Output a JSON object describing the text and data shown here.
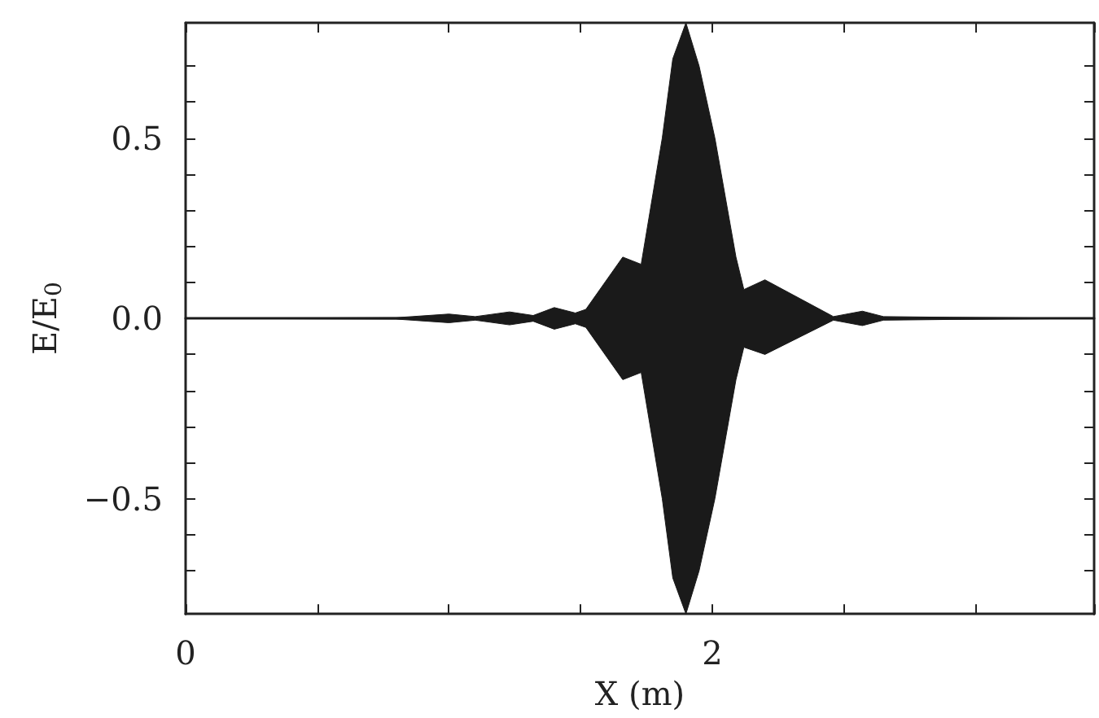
{
  "chart_data": {
    "type": "line",
    "xlabel": "X (m)",
    "ylabel": "E/E$_{0}$",
    "xlim": [
      0,
      3.45
    ],
    "ylim": [
      -0.82,
      0.82
    ],
    "xticks": [
      0,
      {
        "value": 0.5,
        "label": null
      },
      {
        "value": 1,
        "label": null
      },
      {
        "value": 1.5,
        "label": null
      },
      2,
      {
        "value": 2.5,
        "label": null
      },
      {
        "value": 3,
        "label": null
      }
    ],
    "yticks": [
      {
        "value": -0.7,
        "label": null
      },
      {
        "value": -0.6,
        "label": null
      },
      {
        "value": -0.5,
        "label": "−0.5"
      },
      {
        "value": -0.4,
        "label": null
      },
      {
        "value": -0.3,
        "label": null
      },
      {
        "value": -0.2,
        "label": null
      },
      {
        "value": -0.1,
        "label": null
      },
      {
        "value": 0,
        "label": "0.0"
      },
      {
        "value": 0.1,
        "label": null
      },
      {
        "value": 0.2,
        "label": null
      },
      {
        "value": 0.3,
        "label": null
      },
      {
        "value": 0.4,
        "label": null
      },
      {
        "value": 0.5,
        "label": "0.5"
      },
      {
        "value": 0.6,
        "label": null
      },
      {
        "value": 0.7,
        "label": null
      }
    ],
    "grid": false,
    "marker": "none",
    "line_style": "solid",
    "x": [
      0,
      0.8,
      1.0,
      1.1,
      1.23,
      1.32,
      1.4,
      1.48,
      1.52,
      1.66,
      1.73,
      1.81,
      1.85,
      1.9,
      1.95,
      2.01,
      2.09,
      2.12,
      2.2,
      2.46,
      2.57,
      2.65,
      2.9,
      3.45
    ],
    "series": [
      {
        "color": "#1a1a1a",
        "values": [
          0,
          0,
          0,
          0,
          0,
          0,
          0,
          0,
          0,
          0,
          0,
          0,
          0,
          0,
          0,
          0,
          0,
          0,
          0,
          0,
          0,
          0,
          0,
          0
        ],
        "upper": [
          0,
          0.002,
          0.012,
          0.005,
          0.018,
          0.008,
          0.03,
          0.015,
          0.025,
          0.17,
          0.15,
          0.5,
          0.72,
          0.82,
          0.7,
          0.5,
          0.17,
          0.08,
          0.107,
          0.005,
          0.02,
          0.005,
          0.003,
          0
        ],
        "lower": [
          0,
          -0.002,
          -0.012,
          -0.005,
          -0.018,
          -0.008,
          -0.03,
          -0.015,
          -0.025,
          -0.17,
          -0.15,
          -0.5,
          -0.72,
          -0.82,
          -0.7,
          -0.5,
          -0.17,
          -0.08,
          -0.1,
          -0.005,
          -0.02,
          -0.005,
          -0.003,
          0
        ]
      }
    ]
  }
}
